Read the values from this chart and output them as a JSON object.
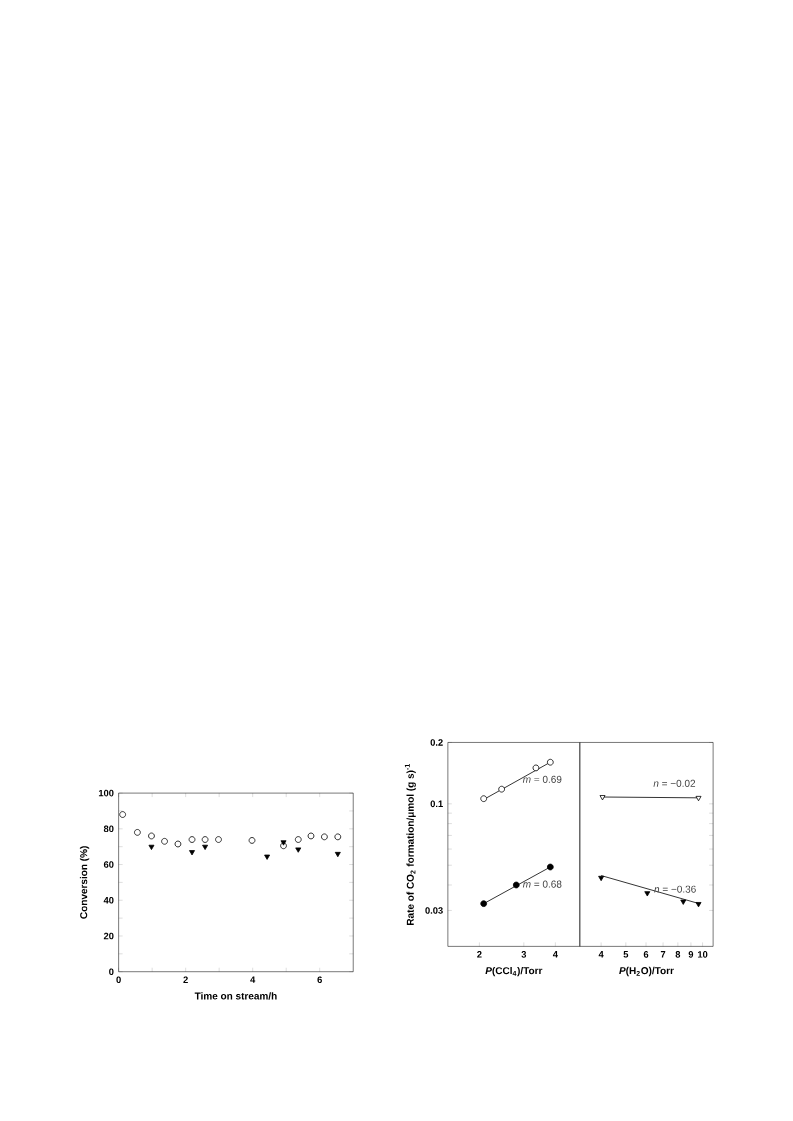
{
  "chart_data": [
    {
      "type": "scatter",
      "xlabel": "Time on stream/h",
      "ylabel": "Conversion (%)",
      "xlim": [
        0,
        7
      ],
      "ylim": [
        0,
        100
      ],
      "xticks": [
        0,
        {
          "value": 1,
          "label": null
        },
        2,
        {
          "value": 3,
          "label": null
        },
        4,
        {
          "value": 5,
          "label": null
        },
        6
      ],
      "yticks": [
        0,
        {
          "value": 10,
          "label": null
        },
        20,
        {
          "value": 30,
          "label": null
        },
        40,
        {
          "value": 50,
          "label": null
        },
        60,
        {
          "value": 70,
          "label": null
        },
        80,
        {
          "value": 90,
          "label": null
        },
        100
      ],
      "series": [
        {
          "color": "#000000",
          "marker": "circle",
          "x": [
            0.12,
            0.56,
            0.98,
            1.37,
            1.77,
            2.19,
            2.58,
            2.98,
            3.98,
            4.92,
            5.36,
            5.74,
            6.14,
            6.54
          ],
          "values": [
            88,
            78,
            76,
            73,
            71.5,
            74,
            74,
            74,
            73.5,
            70.5,
            74,
            76,
            75.5,
            75.5
          ]
        },
        {
          "color": "#000000",
          "marker": "triangle",
          "x": [
            0.98,
            2.19,
            2.58,
            4.43,
            4.92,
            5.36,
            6.54
          ],
          "values": [
            70,
            67,
            70,
            64.5,
            72.5,
            68.5,
            66
          ]
        }
      ]
    },
    {
      "type": "scatter",
      "log": "xy",
      "xlabel": "*P*(CCl$_{4}$)/Torr",
      "ylabel": "Rate of CO$_{2}$ formation/μmol (g s)$^{-1}$",
      "xlim": [
        1.5,
        5
      ],
      "ylim": [
        0.02,
        0.2
      ],
      "xticks": [
        2,
        3,
        4
      ],
      "yticks": [
        0.03,
        {
          "value": 0.04,
          "label": null
        },
        {
          "value": 0.05,
          "label": null
        },
        {
          "value": 0.06,
          "label": null
        },
        {
          "value": 0.07,
          "label": null
        },
        {
          "value": 0.08,
          "label": null
        },
        {
          "value": 0.09,
          "label": null
        },
        0.1,
        0.2
      ],
      "series": [
        {
          "color": "#000000",
          "marker": "circle",
          "x": [
            2.08,
            2.45,
            3.35,
            3.82
          ],
          "values": [
            0.106,
            0.118,
            0.15,
            0.16
          ]
        },
        {
          "color": "#000000",
          "marker": "circle",
          "x": [
            2.08,
            2.8,
            3.82
          ],
          "values": [
            0.0324,
            0.04,
            0.049
          ]
        },
        {
          "type": "line",
          "color": "#000000",
          "x": [
            2.08,
            3.82
          ],
          "values": [
            0.105,
            0.16
          ]
        },
        {
          "type": "line",
          "color": "#000000",
          "x": [
            2.08,
            3.82
          ],
          "values": [
            0.0324,
            0.049
          ]
        }
      ],
      "annotations": [
        "*m* = 0.69",
        "*m* = 0.68"
      ]
    },
    {
      "type": "scatter",
      "log": "xy",
      "tick_labels": "x",
      "xlabel": "*P*(H$_{2}$O)/Torr",
      "xlim": [
        3.3,
        11
      ],
      "ylim": [
        0.02,
        0.2
      ],
      "xticks": [
        4,
        5,
        6,
        7,
        8,
        9,
        10
      ],
      "yticks": [
        0.03,
        {
          "value": 0.04,
          "label": null
        },
        {
          "value": 0.05,
          "label": null
        },
        {
          "value": 0.06,
          "label": null
        },
        {
          "value": 0.07,
          "label": null
        },
        {
          "value": 0.08,
          "label": null
        },
        {
          "value": 0.09,
          "label": null
        },
        0.1,
        0.2
      ],
      "series": [
        {
          "color": "#000000",
          "marker": "triangle",
          "x": [
            4.05,
            9.64
          ],
          "values": [
            0.108,
            0.107
          ]
        },
        {
          "color": "#000000",
          "marker": "triangle",
          "x": [
            4.0,
            6.07,
            8.4,
            9.64
          ],
          "values": [
            0.0434,
            0.0365,
            0.0332,
            0.0323
          ]
        },
        {
          "type": "line",
          "color": "#000000",
          "x": [
            4.05,
            9.64
          ],
          "values": [
            0.108,
            0.107
          ]
        },
        {
          "type": "line",
          "color": "#000000",
          "x": [
            4.0,
            9.7
          ],
          "values": [
            0.0445,
            0.0324
          ]
        }
      ],
      "annotations": [
        "*n* = −0.02",
        "*n* = −0.36"
      ]
    }
  ]
}
